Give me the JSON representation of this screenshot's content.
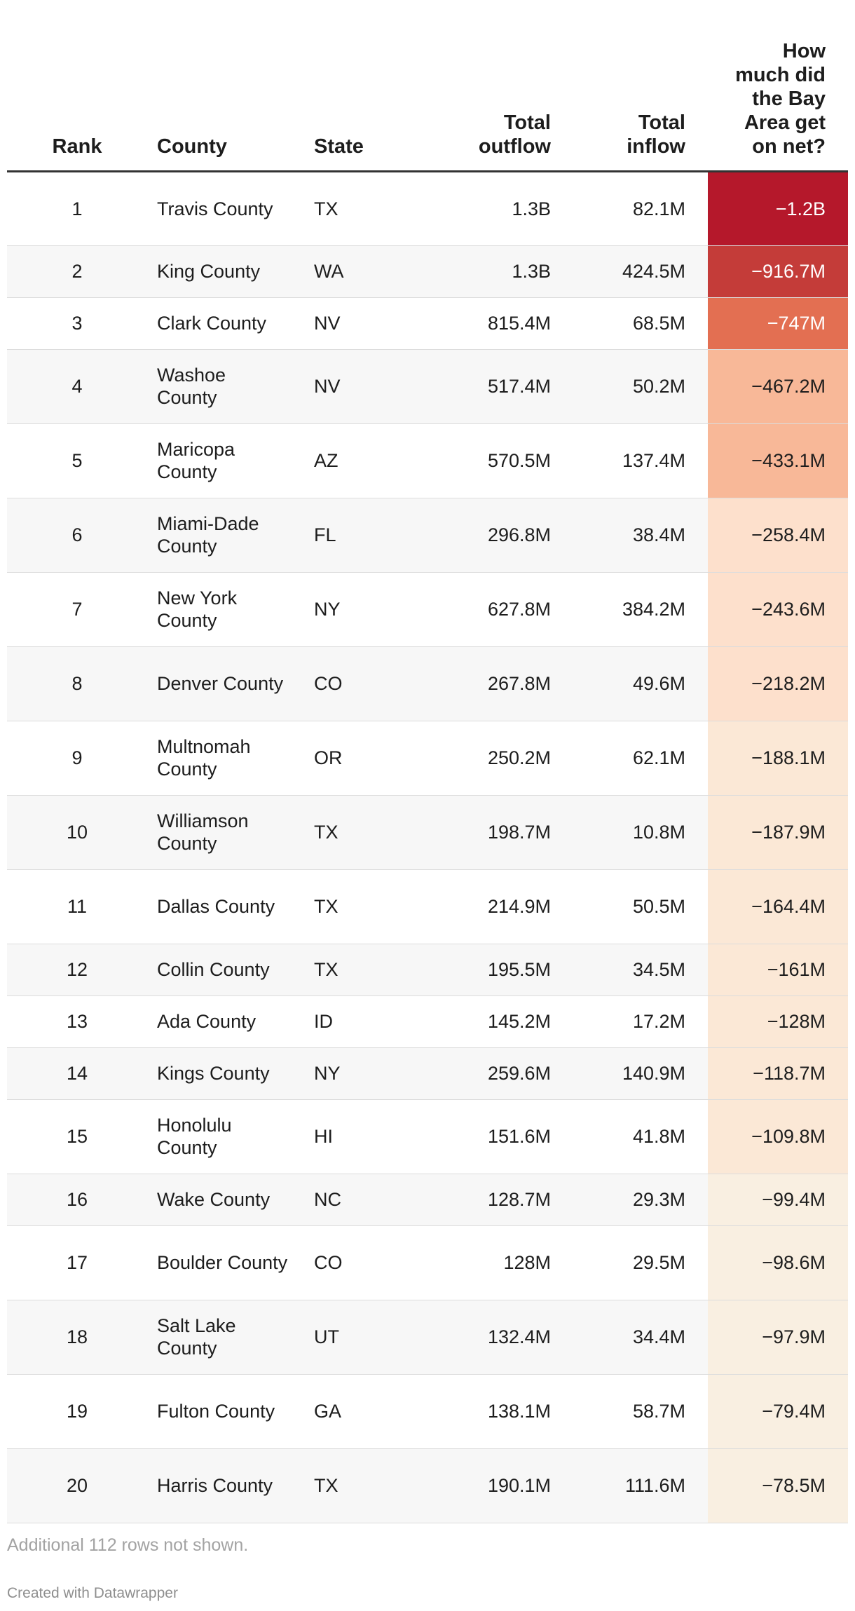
{
  "chart_data": {
    "type": "table",
    "columns": [
      "Rank",
      "County",
      "State",
      "Total outflow",
      "Total inflow",
      "How much did the Bay Area get on net?"
    ],
    "rows": [
      {
        "rank": "1",
        "county": "Travis County",
        "state": "TX",
        "outflow": "1.3B",
        "inflow": "82.1M",
        "net": "−1.2B",
        "net_value": -1200
      },
      {
        "rank": "2",
        "county": "King County",
        "state": "WA",
        "outflow": "1.3B",
        "inflow": "424.5M",
        "net": "−916.7M",
        "net_value": -916.7
      },
      {
        "rank": "3",
        "county": "Clark County",
        "state": "NV",
        "outflow": "815.4M",
        "inflow": "68.5M",
        "net": "−747M",
        "net_value": -747
      },
      {
        "rank": "4",
        "county": "Washoe County",
        "state": "NV",
        "outflow": "517.4M",
        "inflow": "50.2M",
        "net": "−467.2M",
        "net_value": -467.2
      },
      {
        "rank": "5",
        "county": "Maricopa County",
        "state": "AZ",
        "outflow": "570.5M",
        "inflow": "137.4M",
        "net": "−433.1M",
        "net_value": -433.1
      },
      {
        "rank": "6",
        "county": "Miami-Dade County",
        "state": "FL",
        "outflow": "296.8M",
        "inflow": "38.4M",
        "net": "−258.4M",
        "net_value": -258.4
      },
      {
        "rank": "7",
        "county": "New York County",
        "state": "NY",
        "outflow": "627.8M",
        "inflow": "384.2M",
        "net": "−243.6M",
        "net_value": -243.6
      },
      {
        "rank": "8",
        "county": "Denver County",
        "state": "CO",
        "outflow": "267.8M",
        "inflow": "49.6M",
        "net": "−218.2M",
        "net_value": -218.2
      },
      {
        "rank": "9",
        "county": "Multnomah County",
        "state": "OR",
        "outflow": "250.2M",
        "inflow": "62.1M",
        "net": "−188.1M",
        "net_value": -188.1
      },
      {
        "rank": "10",
        "county": "Williamson County",
        "state": "TX",
        "outflow": "198.7M",
        "inflow": "10.8M",
        "net": "−187.9M",
        "net_value": -187.9
      },
      {
        "rank": "11",
        "county": "Dallas County",
        "state": "TX",
        "outflow": "214.9M",
        "inflow": "50.5M",
        "net": "−164.4M",
        "net_value": -164.4
      },
      {
        "rank": "12",
        "county": "Collin County",
        "state": "TX",
        "outflow": "195.5M",
        "inflow": "34.5M",
        "net": "−161M",
        "net_value": -161
      },
      {
        "rank": "13",
        "county": "Ada County",
        "state": "ID",
        "outflow": "145.2M",
        "inflow": "17.2M",
        "net": "−128M",
        "net_value": -128
      },
      {
        "rank": "14",
        "county": "Kings County",
        "state": "NY",
        "outflow": "259.6M",
        "inflow": "140.9M",
        "net": "−118.7M",
        "net_value": -118.7
      },
      {
        "rank": "15",
        "county": "Honolulu County",
        "state": "HI",
        "outflow": "151.6M",
        "inflow": "41.8M",
        "net": "−109.8M",
        "net_value": -109.8
      },
      {
        "rank": "16",
        "county": "Wake County",
        "state": "NC",
        "outflow": "128.7M",
        "inflow": "29.3M",
        "net": "−99.4M",
        "net_value": -99.4
      },
      {
        "rank": "17",
        "county": "Boulder County",
        "state": "CO",
        "outflow": "128M",
        "inflow": "29.5M",
        "net": "−98.6M",
        "net_value": -98.6
      },
      {
        "rank": "18",
        "county": "Salt Lake County",
        "state": "UT",
        "outflow": "132.4M",
        "inflow": "34.4M",
        "net": "−97.9M",
        "net_value": -97.9
      },
      {
        "rank": "19",
        "county": "Fulton County",
        "state": "GA",
        "outflow": "138.1M",
        "inflow": "58.7M",
        "net": "−79.4M",
        "net_value": -79.4
      },
      {
        "rank": "20",
        "county": "Harris County",
        "state": "TX",
        "outflow": "190.1M",
        "inflow": "111.6M",
        "net": "−78.5M",
        "net_value": -78.5
      }
    ],
    "net_color_scale": [
      {
        "min": 1000,
        "bg": "#b5182b",
        "fg": "#ffffff"
      },
      {
        "min": 800,
        "bg": "#c43c39",
        "fg": "#ffffff"
      },
      {
        "min": 600,
        "bg": "#e36f52",
        "fg": "#ffffff"
      },
      {
        "min": 400,
        "bg": "#f8b898",
        "fg": "#1d1d1d"
      },
      {
        "min": 200,
        "bg": "#fde0cc",
        "fg": "#1d1d1d"
      },
      {
        "min": 100,
        "bg": "#fbe8d6",
        "fg": "#1d1d1d"
      },
      {
        "min": 0,
        "bg": "#f9efe1",
        "fg": "#1d1d1d"
      }
    ]
  },
  "footer": {
    "note": "Additional 112 rows not shown.",
    "credit": "Created with Datawrapper"
  }
}
